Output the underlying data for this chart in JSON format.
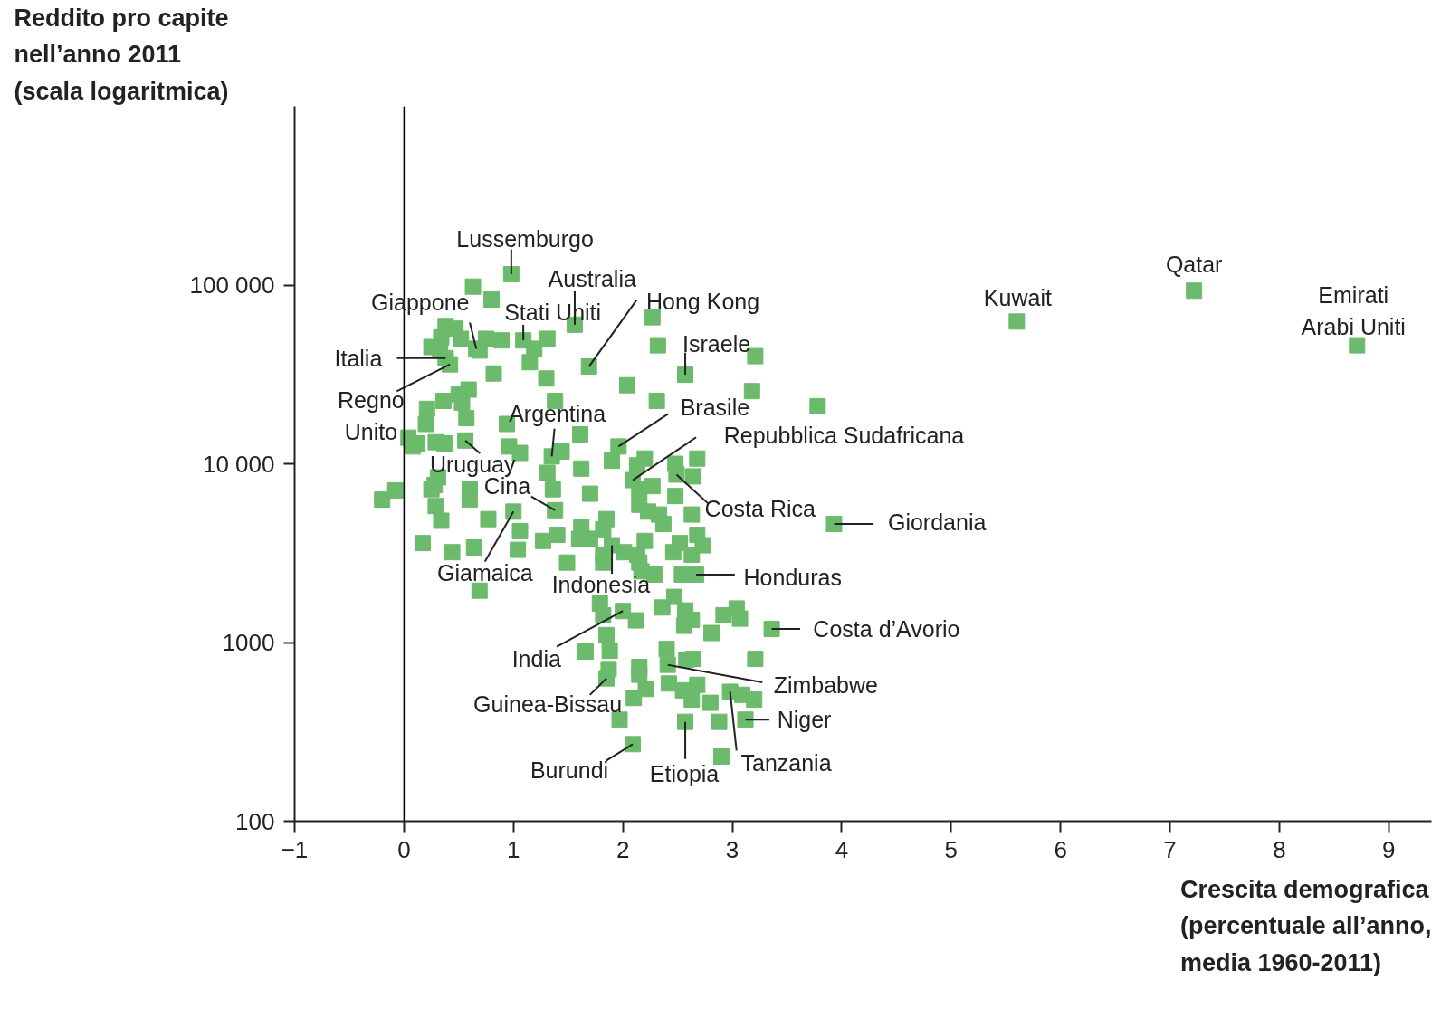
{
  "chart_data": {
    "type": "scatter",
    "ylabel": "Reddito pro capite nell’anno 2011 (scala logaritmica)",
    "xlabel": "Crescita demografica (percentuale all’anno, media 1960-2011)",
    "log": "y",
    "grid": false,
    "marker": "square",
    "xlim": [
      -1,
      9.39
    ],
    "ylim": [
      100,
      1000000
    ],
    "xticks": [
      {
        "value": -1,
        "label": "−1"
      },
      0,
      1,
      2,
      3,
      4,
      5,
      6,
      7,
      8,
      9
    ],
    "yticks": [
      100,
      1000,
      {
        "value": 10000,
        "label": "10 000"
      },
      {
        "value": 100000,
        "label": "100 000"
      }
    ],
    "ref_lines": [
      {
        "axis": "x",
        "value": 0,
        "color": "#000000"
      }
    ],
    "series": [
      {
        "color": "#6cba6b",
        "x": [
          0.98,
          1.56,
          1.09,
          0.66,
          0.38,
          0.42,
          1.69,
          2.57,
          1.96,
          1.35,
          0.56,
          2.09,
          2.49,
          1.38,
          1.0,
          1.9,
          2.67,
          3.93,
          3.36,
          2.0,
          2.41,
          1.85,
          3.12,
          2.98,
          2.57,
          2.09,
          5.6,
          7.22,
          8.71,
          0.63,
          0.8,
          0.38,
          0.47,
          0.34,
          0.25,
          0.33,
          0.52,
          0.69,
          0.75,
          0.89,
          1.19,
          1.31,
          1.15,
          1.3,
          0.82,
          2.27,
          2.32,
          3.21,
          3.18,
          3.78,
          2.04,
          2.31,
          1.38,
          0.59,
          0.5,
          0.53,
          0.36,
          0.21,
          0.57,
          0.94,
          0.2,
          0.04,
          0.12,
          0.08,
          0.29,
          0.37,
          0.96,
          1.06,
          1.44,
          1.61,
          1.9,
          2.2,
          2.13,
          2.48,
          2.68,
          2.64,
          1.62,
          1.31,
          1.36,
          2.27,
          2.48,
          1.7,
          2.15,
          2.15,
          2.23,
          2.33,
          2.37,
          2.63,
          0.31,
          0.28,
          0.25,
          0.6,
          0.6,
          -0.2,
          -0.08,
          0.29,
          0.34,
          0.77,
          1.06,
          1.4,
          1.27,
          1.62,
          1.6,
          1.7,
          1.85,
          1.82,
          1.82,
          2.2,
          2.01,
          2.13,
          2.15,
          2.68,
          2.73,
          2.52,
          2.46,
          2.63,
          2.29,
          2.17,
          2.54,
          0.17,
          0.44,
          0.64,
          1.04,
          1.49,
          1.82,
          0.69,
          1.79,
          1.82,
          2.12,
          2.36,
          2.47,
          2.57,
          2.63,
          2.56,
          2.81,
          2.92,
          3.04,
          3.07,
          1.85,
          1.66,
          1.88,
          1.87,
          2.4,
          2.15,
          2.15,
          2.21,
          2.1,
          1.97,
          2.42,
          2.55,
          2.63,
          2.68,
          2.58,
          2.64,
          2.8,
          2.88,
          3.09,
          3.2,
          3.21,
          2.9
        ],
        "values": [
          115000,
          60000,
          49000,
          44000,
          39000,
          36000,
          35000,
          31500,
          12500,
          11000,
          13500,
          8100,
          8700,
          5500,
          5400,
          3500,
          2400,
          4600,
          1190,
          1500,
          750,
          630,
          370,
          530,
          360,
          270,
          62500,
          93000,
          46000,
          98000,
          83000,
          59000,
          57000,
          51000,
          45000,
          43000,
          50000,
          43000,
          50000,
          49000,
          44000,
          50000,
          37000,
          30000,
          32000,
          66000,
          46000,
          40000,
          25500,
          21000,
          27500,
          22500,
          22500,
          26000,
          24500,
          22000,
          22500,
          20300,
          18000,
          16700,
          16700,
          14000,
          13000,
          12500,
          13200,
          13000,
          12500,
          11500,
          11700,
          14600,
          10400,
          10700,
          9800,
          10000,
          10700,
          8500,
          9400,
          8900,
          7200,
          7500,
          6600,
          6800,
          7200,
          5900,
          5400,
          5200,
          4600,
          5200,
          8400,
          7600,
          7200,
          7200,
          6300,
          6300,
          7100,
          5800,
          4800,
          4900,
          4200,
          4000,
          3700,
          4400,
          3800,
          3800,
          4900,
          4300,
          3100,
          3700,
          3200,
          3100,
          2800,
          4000,
          3500,
          3600,
          3200,
          3100,
          2400,
          2500,
          2400,
          3600,
          3200,
          3400,
          3300,
          2800,
          2800,
          1950,
          1650,
          1420,
          1330,
          1570,
          1800,
          1510,
          1340,
          1240,
          1130,
          1420,
          1550,
          1360,
          1100,
          890,
          900,
          710,
          920,
          730,
          660,
          550,
          490,
          370,
          590,
          540,
          480,
          580,
          800,
          810,
          460,
          360,
          510,
          480,
          810,
          230
        ]
      }
    ],
    "annotations": [
      {
        "text": "Lussemburgo",
        "x": 0.98,
        "y": 115000
      },
      {
        "text": "Australia",
        "x": 1.56,
        "y": 60000
      },
      {
        "text": "Stati Uniti",
        "x": 1.09,
        "y": 49000
      },
      {
        "text": "Giappone",
        "x": 0.66,
        "y": 44000
      },
      {
        "text": "Italia",
        "x": 0.38,
        "y": 39000
      },
      {
        "text": "Regno Unito",
        "x": 0.42,
        "y": 36000
      },
      {
        "text": "Hong Kong",
        "x": 1.69,
        "y": 35000
      },
      {
        "text": "Israele",
        "x": 2.57,
        "y": 31500
      },
      {
        "text": "Brasile",
        "x": 1.96,
        "y": 12500
      },
      {
        "text": "Argentina",
        "x": 1.35,
        "y": 11000
      },
      {
        "text": "Uruguay",
        "x": 0.56,
        "y": 13500
      },
      {
        "text": "Repubblica Sudafricana",
        "x": 2.09,
        "y": 8100
      },
      {
        "text": "Costa Rica",
        "x": 2.49,
        "y": 8700
      },
      {
        "text": "Cina",
        "x": 1.38,
        "y": 5500
      },
      {
        "text": "Giamaica",
        "x": 1.0,
        "y": 5400
      },
      {
        "text": "Indonesia",
        "x": 1.9,
        "y": 3500
      },
      {
        "text": "Honduras",
        "x": 2.67,
        "y": 2400
      },
      {
        "text": "Giordania",
        "x": 3.93,
        "y": 4600
      },
      {
        "text": "Costa d’Avorio",
        "x": 3.36,
        "y": 1190
      },
      {
        "text": "India",
        "x": 2.0,
        "y": 1500
      },
      {
        "text": "Zimbabwe",
        "x": 2.41,
        "y": 750
      },
      {
        "text": "Guinea-Bissau",
        "x": 1.85,
        "y": 630
      },
      {
        "text": "Niger",
        "x": 3.12,
        "y": 370
      },
      {
        "text": "Tanzania",
        "x": 2.98,
        "y": 530
      },
      {
        "text": "Etiopia",
        "x": 2.57,
        "y": 360
      },
      {
        "text": "Burundi",
        "x": 2.09,
        "y": 270
      },
      {
        "text": "Kuwait",
        "x": 5.6,
        "y": 62500
      },
      {
        "text": "Qatar",
        "x": 7.22,
        "y": 93000
      },
      {
        "text": "Emirati Arabi Uniti",
        "x": 8.71,
        "y": 46000
      }
    ]
  }
}
